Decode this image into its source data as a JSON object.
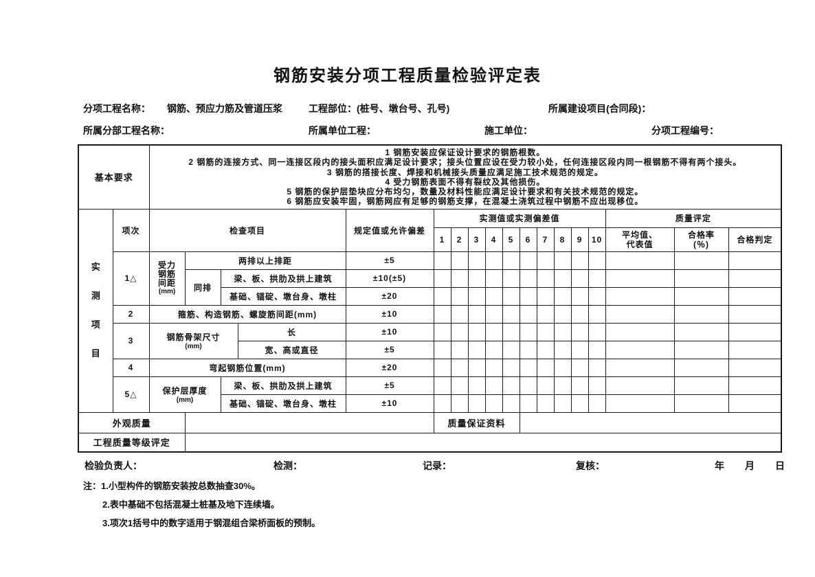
{
  "title": "钢筋安装分项工程质量检验评定表",
  "info": {
    "subproject_label": "分项工程名称：",
    "subproject_value": "钢筋、预应力筋及管道压浆",
    "part_label": "工程部位：(桩号、墩台号、孔号)",
    "project_label": "所属建设项目(合同段)：",
    "division_label": "所属分部工程名称：",
    "unit_label": "所属单位工程：",
    "contractor_label": "施工单位：",
    "code_label": "分项工程编号："
  },
  "basic_requirements": {
    "label": "基本要求",
    "items": [
      "1 钢筋安装应保证设计要求的钢筋根数。",
      "2 钢筋的连接方式、同一连接区段内的接头面积应满足设计要求；接头位置应设在受力较小处，任何连接区段内同一根钢筋不得有两个接头。",
      "3 钢筋的搭接长度、焊接和机械接头质量应满足施工技术规范的规定。",
      "4 受力钢筋表面不得有裂纹及其他损伤。",
      "5 钢筋的保护层垫块应分布均匀，数量及材料性能应满足设计要求和有关技术规范的规定。",
      "6 钢筋应安装牢固，钢筋网应有足够的钢筋支撑，在混凝土浇筑过程中钢筋不应出现移位。"
    ]
  },
  "table": {
    "section_label": "实测项目",
    "headers": {
      "item_no": "项次",
      "check_item": "检查项目",
      "spec": "规定值或允许偏差",
      "measured": "实测值或实测偏差值",
      "cols": [
        "1",
        "2",
        "3",
        "4",
        "5",
        "6",
        "7",
        "8",
        "9",
        "10"
      ],
      "quality": "质量评定",
      "average_l1": "平均值、",
      "average_l2": "代表值",
      "pass_rate": "合格率",
      "pass_rate_unit": "(％)",
      "judgement": "合格判定"
    },
    "rows": {
      "r1": {
        "no": "1△",
        "group": "受力钢筋间距",
        "group_unit": "(mm)",
        "sub1": "两排以上排距",
        "spec1": "±5",
        "tongpai": "同排",
        "sub2": "梁、板、拱肋及拱上建筑",
        "spec2": "±10(±5)",
        "sub3": "基础、锚碇、墩台身、墩柱",
        "spec3": "±20"
      },
      "r2": {
        "no": "2",
        "item": "箍筋、构造钢筋、螺旋筋间距(mm)",
        "spec": "±10"
      },
      "r3": {
        "no": "3",
        "group": "钢筋骨架尺寸",
        "group_unit": "(mm)",
        "sub1": "长",
        "spec1": "±10",
        "sub2": "宽、高或直径",
        "spec2": "±5"
      },
      "r4": {
        "no": "4",
        "item": "弯起钢筋位置(mm)",
        "spec": "±20"
      },
      "r5": {
        "no": "5△",
        "group": "保护层厚度",
        "group_unit": "(mm)",
        "sub1": "梁、板、拱肋及拱上建筑",
        "spec1": "±5",
        "sub2": "基础、锚碇、墩台身、墩柱",
        "spec2": "±10"
      }
    },
    "appearance_label": "外观质量",
    "assurance_label": "质量保证资料",
    "grade_label": "工程质量等级评定"
  },
  "footer": {
    "inspector_label": "检验负责人：",
    "tester_label": "检测：",
    "recorder_label": "记录：",
    "reviewer_label": "复核：",
    "date_label": "年　月　日"
  },
  "notes": {
    "prefix": "注：",
    "items": [
      "1.小型构件的钢筋安装按总数抽查30%。",
      "2.表中基础不包括混凝土桩基及地下连续墙。",
      "3.项次1括号中的数字适用于钢混组合梁桥面板的预制。"
    ]
  }
}
